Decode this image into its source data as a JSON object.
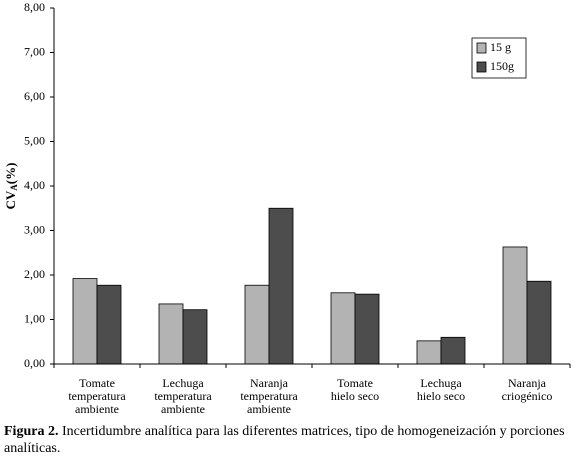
{
  "chart_data": {
    "type": "bar",
    "ylabel_main": "CV",
    "ylabel_sub": "A",
    "ylabel_end": "(%)",
    "categories": [
      "Tomate\ntemperatura\nambiente",
      "Lechuga\ntemperatura\nambiente",
      "Naranja\ntemperatura\nambiente",
      "Tomate\nhielo seco",
      "Lechuga\nhielo seco",
      "Naranja\ncriogénico"
    ],
    "series": [
      {
        "name": "15 g",
        "color": "#b3b3b3",
        "values": [
          1.92,
          1.35,
          1.77,
          1.6,
          0.52,
          2.63
        ]
      },
      {
        "name": "150g",
        "color": "#4d4d4d",
        "values": [
          1.77,
          1.22,
          3.5,
          1.57,
          0.6,
          1.86
        ]
      }
    ],
    "ylim": [
      0,
      8
    ],
    "yticks": [
      {
        "value": 0,
        "label": "0,00"
      },
      {
        "value": 1,
        "label": "1,00"
      },
      {
        "value": 2,
        "label": "2,00"
      },
      {
        "value": 3,
        "label": "3,00"
      },
      {
        "value": 4,
        "label": "4,00"
      },
      {
        "value": 5,
        "label": "5,00"
      },
      {
        "value": 6,
        "label": "6,00"
      },
      {
        "value": 7,
        "label": "7,00"
      },
      {
        "value": 8,
        "label": "8,00"
      }
    ],
    "legend": "upper right",
    "caption_label": "Figura 2.",
    "caption_text": "Incertidumbre analítica para las diferentes matrices, tipo de homogeneización y porciones analíticas."
  }
}
